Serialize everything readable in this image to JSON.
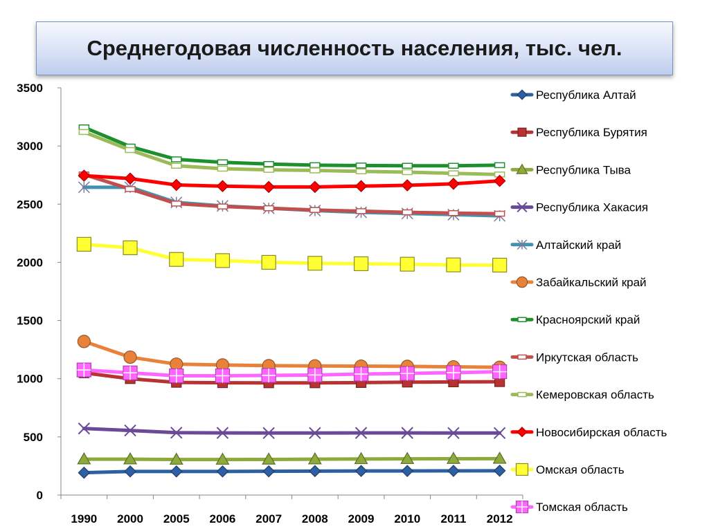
{
  "chart_data": {
    "type": "line",
    "title": "Среднегодовая численность населения, тыс. чел.",
    "xlabel": "",
    "ylabel": "",
    "categories": [
      "1990",
      "2000",
      "2005",
      "2006",
      "2007",
      "2008",
      "2009",
      "2010",
      "2011",
      "2012"
    ],
    "ylim": [
      0,
      3500
    ],
    "yticks": [
      0,
      500,
      1000,
      1500,
      2000,
      2500,
      3000,
      3500
    ],
    "grid": false,
    "legend_position": "right",
    "series": [
      {
        "name": "Республика Алтай",
        "color": "#2e5fa3",
        "marker": "diamond",
        "values": [
          192,
          203,
          203,
          203,
          204,
          206,
          207,
          207,
          208,
          209
        ]
      },
      {
        "name": "Республика Бурятия",
        "color": "#b83232",
        "marker": "square",
        "values": [
          1050,
          1000,
          968,
          965,
          964,
          964,
          966,
          970,
          972,
          974
        ]
      },
      {
        "name": "Республика Тыва",
        "color": "#8eaa3d",
        "marker": "triangle",
        "values": [
          308,
          308,
          305,
          305,
          306,
          308,
          310,
          311,
          312,
          313
        ]
      },
      {
        "name": "Республика Хакасия",
        "color": "#6a4a97",
        "marker": "x",
        "values": [
          572,
          555,
          536,
          534,
          533,
          533,
          534,
          534,
          533,
          533
        ]
      },
      {
        "name": "Алтайский край",
        "color": "#3f93b0",
        "marker": "star",
        "values": [
          2645,
          2645,
          2515,
          2485,
          2465,
          2445,
          2430,
          2420,
          2410,
          2400
        ]
      },
      {
        "name": "Забайкальский край",
        "color": "#e8823a",
        "marker": "circle",
        "values": [
          1320,
          1185,
          1125,
          1118,
          1112,
          1110,
          1108,
          1106,
          1102,
          1098
        ]
      },
      {
        "name": "Красноярский край",
        "color": "#1e8f2e",
        "marker": "dash",
        "values": [
          3160,
          2995,
          2885,
          2860,
          2845,
          2835,
          2832,
          2830,
          2830,
          2835
        ]
      },
      {
        "name": "Иркутская область",
        "color": "#c0504d",
        "marker": "dash",
        "values": [
          2755,
          2630,
          2505,
          2480,
          2465,
          2450,
          2440,
          2430,
          2423,
          2418
        ]
      },
      {
        "name": "Кемеровская область",
        "color": "#9bbb59",
        "marker": "dash",
        "values": [
          3120,
          2965,
          2830,
          2805,
          2795,
          2790,
          2782,
          2775,
          2765,
          2755
        ]
      },
      {
        "name": "Новосибирская область",
        "color": "#ff0000",
        "marker": "diamond",
        "values": [
          2745,
          2720,
          2665,
          2655,
          2648,
          2648,
          2655,
          2662,
          2675,
          2700
        ]
      },
      {
        "name": "Омская область",
        "color": "#ffff33",
        "marker": "bigsquare",
        "values": [
          2155,
          2125,
          2025,
          2015,
          2000,
          1992,
          1988,
          1984,
          1978,
          1976
        ]
      },
      {
        "name": "Томская область",
        "color": "#ff66ff",
        "marker": "plussquare",
        "values": [
          1075,
          1050,
          1025,
          1025,
          1028,
          1032,
          1040,
          1045,
          1052,
          1060
        ]
      }
    ]
  }
}
